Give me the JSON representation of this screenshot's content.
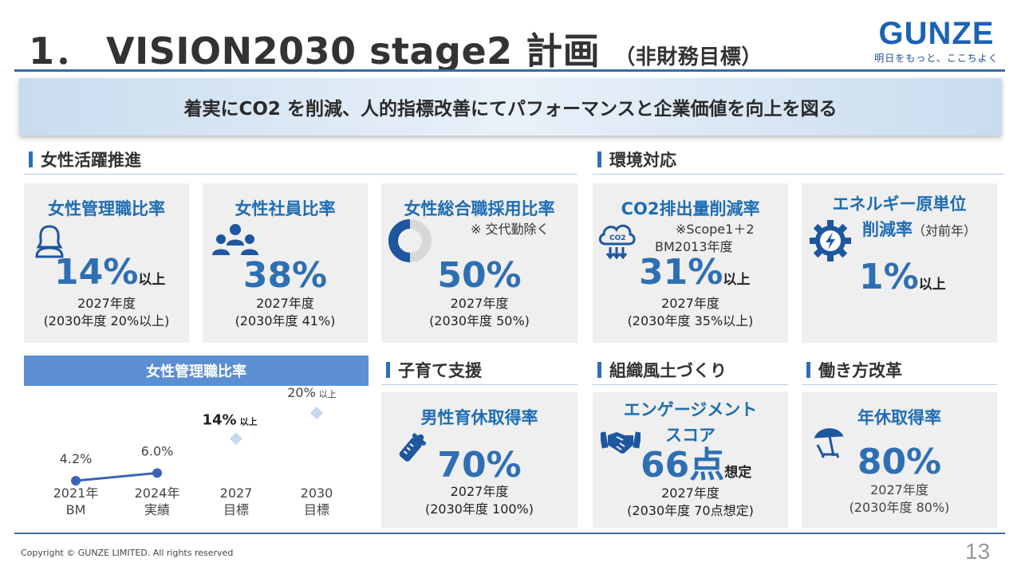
{
  "header": {
    "number": "1．",
    "title": "VISION2030 stage2 計画",
    "subtitle": "（非財務目標）",
    "logo_word": "GUNZE",
    "logo_tagline": "明日をもっと、ここちよく"
  },
  "banner": "着実にCO2 を削減、人的指標改善にてパフォーマンスと企業価値を向上を図る",
  "sections": {
    "women": "女性活躍推進",
    "env": "環境対応",
    "childcare": "子育て支援",
    "culture": "組織風土づくり",
    "workstyle": "働き方改革"
  },
  "cards": {
    "mgmt_ratio": {
      "title": "女性管理職比率",
      "value": "14%",
      "suffix": "以上",
      "year": "2027年度",
      "target": "(2030年度 20%以上)"
    },
    "employee_ratio": {
      "title": "女性社員比率",
      "value": "38%",
      "year": "2027年度",
      "target": "(2030年度 41%)"
    },
    "career_hire": {
      "title": "女性総合職採用比率",
      "note": "※ 交代勤除く",
      "value": "50%",
      "year": "2027年度",
      "target": "(2030年度 50%)"
    },
    "co2": {
      "title": "CO2排出量削減率",
      "note1": "※Scope1＋2",
      "note2": "BM2013年度",
      "value": "31%",
      "suffix": "以上",
      "year": "2027年度",
      "target": "(2030年度 35%以上)"
    },
    "energy": {
      "title1": "エネルギー原単位",
      "title2": "削減率",
      "title2_note": "（対前年）",
      "value": "1%",
      "suffix": "以上"
    },
    "paternity": {
      "title": "男性育休取得率",
      "value": "70%",
      "year": "2027年度",
      "target": "(2030年度 100%)"
    },
    "engagement": {
      "title1": "エンゲージメント",
      "title2": "スコア",
      "value": "66点",
      "suffix": "想定",
      "year": "2027年度",
      "target": "(2030年度 70点想定)"
    },
    "leave": {
      "title": "年休取得率",
      "value": "80%",
      "year": "2027年度",
      "target": "(2030年度 80%)"
    }
  },
  "chart_data": {
    "type": "line",
    "title": "女性管理職比率",
    "categories": [
      [
        "2021年",
        "BM"
      ],
      [
        "2024年",
        "実績"
      ],
      [
        "2027",
        "目標"
      ],
      [
        "2030",
        "目標"
      ]
    ],
    "series": [
      {
        "values": [
          4.2,
          6.0,
          null,
          null
        ],
        "style": "actual-line",
        "color": "#3b63b8"
      },
      {
        "values": [
          null,
          null,
          14,
          20
        ],
        "style": "target-marker",
        "color": "#c5d9f1"
      }
    ],
    "data_labels": [
      "4.2%",
      "6.0%",
      "14%",
      "20%"
    ],
    "data_label_suffix": "以上",
    "ylim": [
      0,
      25
    ]
  },
  "footer": {
    "copyright": "Copyright © GUNZE LIMITED. All rights reserved",
    "page": "13"
  },
  "colors": {
    "accent": "#2e6fb4",
    "card_bg": "#efefef",
    "rule": "#3c6aa5"
  },
  "icons": [
    "woman-icon",
    "group-icon",
    "donut-icon",
    "cloud-co2-icon",
    "gear-bolt-icon",
    "baby-bottle-icon",
    "handshake-icon",
    "beach-chair-icon"
  ]
}
